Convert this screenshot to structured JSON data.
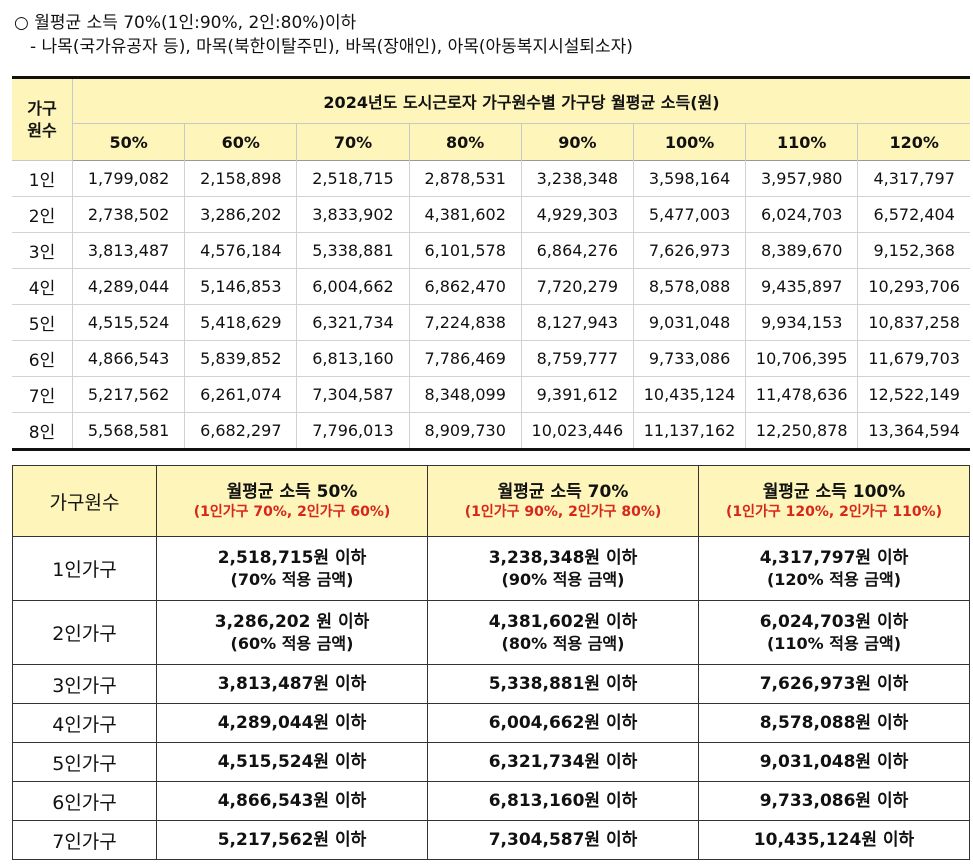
{
  "header": {
    "line1": "○  월평균 소득 70%(1인:90%, 2인:80%)이하",
    "line2": "-  나목(국가유공자 등), 마목(북한이탈주민), 바목(장애인), 아목(아동복지시설퇴소자)"
  },
  "table1": {
    "corner": "가구\n원수",
    "title": "2024년도 도시근로자 가구원수별 가구당 월평균 소득(원)",
    "percentages": [
      "50%",
      "60%",
      "70%",
      "80%",
      "90%",
      "100%",
      "110%",
      "120%"
    ],
    "rows": [
      {
        "label": "1인",
        "values": [
          "1,799,082",
          "2,158,898",
          "2,518,715",
          "2,878,531",
          "3,238,348",
          "3,598,164",
          "3,957,980",
          "4,317,797"
        ]
      },
      {
        "label": "2인",
        "values": [
          "2,738,502",
          "3,286,202",
          "3,833,902",
          "4,381,602",
          "4,929,303",
          "5,477,003",
          "6,024,703",
          "6,572,404"
        ]
      },
      {
        "label": "3인",
        "values": [
          "3,813,487",
          "4,576,184",
          "5,338,881",
          "6,101,578",
          "6,864,276",
          "7,626,973",
          "8,389,670",
          "9,152,368"
        ]
      },
      {
        "label": "4인",
        "values": [
          "4,289,044",
          "5,146,853",
          "6,004,662",
          "6,862,470",
          "7,720,279",
          "8,578,088",
          "9,435,897",
          "10,293,706"
        ]
      },
      {
        "label": "5인",
        "values": [
          "4,515,524",
          "5,418,629",
          "6,321,734",
          "7,224,838",
          "8,127,943",
          "9,031,048",
          "9,934,153",
          "10,837,258"
        ]
      },
      {
        "label": "6인",
        "values": [
          "4,866,543",
          "5,839,852",
          "6,813,160",
          "7,786,469",
          "8,759,777",
          "9,733,086",
          "10,706,395",
          "11,679,703"
        ]
      },
      {
        "label": "7인",
        "values": [
          "5,217,562",
          "6,261,074",
          "7,304,587",
          "8,348,099",
          "9,391,612",
          "10,435,124",
          "11,478,636",
          "12,522,149"
        ]
      },
      {
        "label": "8인",
        "values": [
          "5,568,581",
          "6,682,297",
          "7,796,013",
          "8,909,730",
          "10,023,446",
          "11,137,162",
          "12,250,878",
          "13,364,594"
        ]
      }
    ]
  },
  "table2": {
    "row_header": "가구원수",
    "columns": [
      {
        "title": "월평균 소득 50%",
        "sub": "(1인가구 70%, 2인가구 60%)"
      },
      {
        "title": "월평균 소득 70%",
        "sub": "(1인가구 90%, 2인가구 80%)"
      },
      {
        "title": "월평균 소득 100%",
        "sub": "(1인가구 120%, 2인가구 110%)"
      }
    ],
    "rows": [
      {
        "label": "1인가구",
        "cells": [
          {
            "amount": "2,518,715원 이하",
            "note": "(70% 적용 금액)"
          },
          {
            "amount": "3,238,348원 이하",
            "note": "(90% 적용 금액)"
          },
          {
            "amount": "4,317,797원 이하",
            "note": "(120% 적용 금액)"
          }
        ]
      },
      {
        "label": "2인가구",
        "cells": [
          {
            "amount": "3,286,202 원 이하",
            "note": "(60% 적용 금액)"
          },
          {
            "amount": "4,381,602원 이하",
            "note": "(80% 적용 금액)"
          },
          {
            "amount": "6,024,703원 이하",
            "note": "(110% 적용 금액)"
          }
        ]
      },
      {
        "label": "3인가구",
        "cells": [
          {
            "amount": "3,813,487원 이하"
          },
          {
            "amount": "5,338,881원 이하"
          },
          {
            "amount": "7,626,973원 이하"
          }
        ]
      },
      {
        "label": "4인가구",
        "cells": [
          {
            "amount": "4,289,044원 이하"
          },
          {
            "amount": "6,004,662원 이하"
          },
          {
            "amount": "8,578,088원 이하"
          }
        ]
      },
      {
        "label": "5인가구",
        "cells": [
          {
            "amount": "4,515,524원 이하"
          },
          {
            "amount": "6,321,734원 이하"
          },
          {
            "amount": "9,031,048원 이하"
          }
        ]
      },
      {
        "label": "6인가구",
        "cells": [
          {
            "amount": "4,866,543원 이하"
          },
          {
            "amount": "6,813,160원 이하"
          },
          {
            "amount": "9,733,086원 이하"
          }
        ]
      },
      {
        "label": "7인가구",
        "cells": [
          {
            "amount": "5,217,562원 이하"
          },
          {
            "amount": "7,304,587원 이하"
          },
          {
            "amount": "10,435,124원 이하"
          }
        ]
      }
    ]
  },
  "colors": {
    "header_bg": "#fdf5b9",
    "accent_red": "#d8261c"
  }
}
